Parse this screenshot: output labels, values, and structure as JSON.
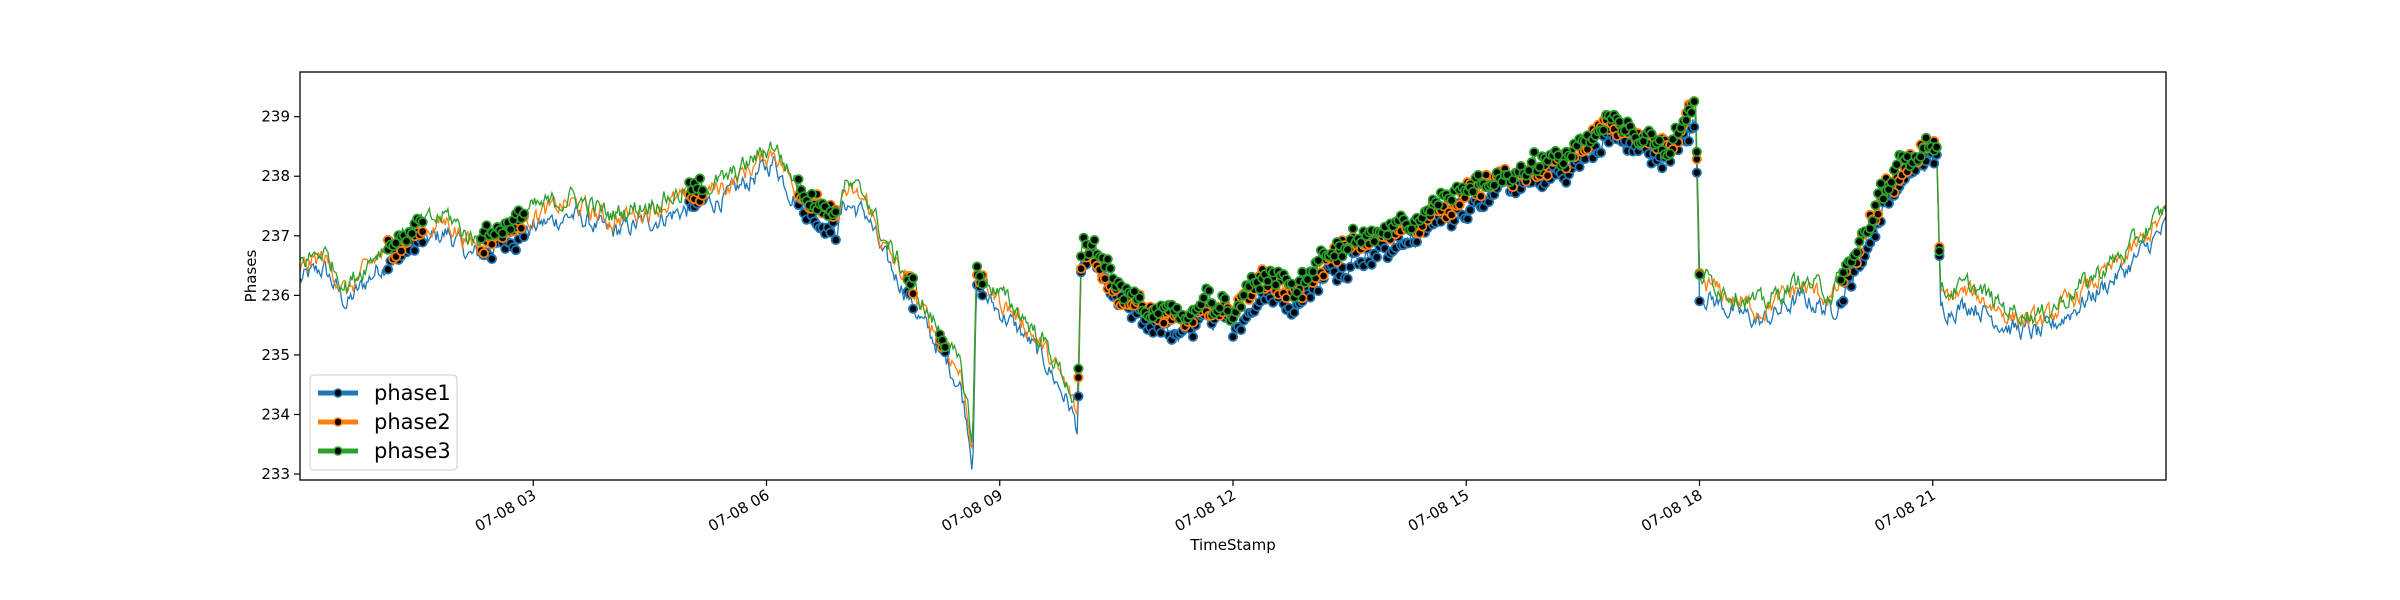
{
  "chart_data": {
    "type": "line",
    "xlabel": "TimeStamp",
    "ylabel": "Phases",
    "xlim_hours": [
      0,
      24
    ],
    "ylim": [
      232.9,
      239.75
    ],
    "grid": false,
    "legend_position": "lower-left",
    "x_ticks": [
      {
        "hour": 3,
        "label": "07-08 03"
      },
      {
        "hour": 6,
        "label": "07-08 06"
      },
      {
        "hour": 9,
        "label": "07-08 09"
      },
      {
        "hour": 12,
        "label": "07-08 12"
      },
      {
        "hour": 15,
        "label": "07-08 15"
      },
      {
        "hour": 18,
        "label": "07-08 18"
      },
      {
        "hour": 21,
        "label": "07-08 21"
      }
    ],
    "y_ticks": [
      233,
      234,
      235,
      236,
      237,
      238,
      239
    ],
    "series": [
      {
        "name": "phase1",
        "color": "#1f77b4",
        "offset": -0.25
      },
      {
        "name": "phase2",
        "color": "#ff7f0e",
        "offset": -0.05
      },
      {
        "name": "phase3",
        "color": "#2ca02c",
        "offset": 0.05
      }
    ],
    "base_profile": [
      [
        0.0,
        236.5
      ],
      [
        0.3,
        236.7
      ],
      [
        0.6,
        236.1
      ],
      [
        1.0,
        236.7
      ],
      [
        1.5,
        237.1
      ],
      [
        1.9,
        237.3
      ],
      [
        2.2,
        236.9
      ],
      [
        2.6,
        237.1
      ],
      [
        3.0,
        237.4
      ],
      [
        3.5,
        237.6
      ],
      [
        4.0,
        237.3
      ],
      [
        4.5,
        237.5
      ],
      [
        5.0,
        237.7
      ],
      [
        5.5,
        237.9
      ],
      [
        5.9,
        238.3
      ],
      [
        6.1,
        238.5
      ],
      [
        6.3,
        238.0
      ],
      [
        6.6,
        237.6
      ],
      [
        6.9,
        237.3
      ],
      [
        7.0,
        237.8
      ],
      [
        7.3,
        237.6
      ],
      [
        7.5,
        236.9
      ],
      [
        7.8,
        236.3
      ],
      [
        8.0,
        235.8
      ],
      [
        8.3,
        235.2
      ],
      [
        8.5,
        234.7
      ],
      [
        8.6,
        234.0
      ],
      [
        8.65,
        233.4
      ],
      [
        8.7,
        236.4
      ],
      [
        8.9,
        236.1
      ],
      [
        9.3,
        235.6
      ],
      [
        9.6,
        235.1
      ],
      [
        9.9,
        234.4
      ],
      [
        10.0,
        234.0
      ],
      [
        10.05,
        236.7
      ],
      [
        10.2,
        236.8
      ],
      [
        10.5,
        236.1
      ],
      [
        10.9,
        235.8
      ],
      [
        11.3,
        235.5
      ],
      [
        11.6,
        235.9
      ],
      [
        12.0,
        235.7
      ],
      [
        12.4,
        236.3
      ],
      [
        12.8,
        236.1
      ],
      [
        13.2,
        236.6
      ],
      [
        13.6,
        236.9
      ],
      [
        14.0,
        237.0
      ],
      [
        14.4,
        237.3
      ],
      [
        14.8,
        237.6
      ],
      [
        15.2,
        237.9
      ],
      [
        15.6,
        238.0
      ],
      [
        16.0,
        238.2
      ],
      [
        16.4,
        238.4
      ],
      [
        16.8,
        238.9
      ],
      [
        17.2,
        238.7
      ],
      [
        17.6,
        238.5
      ],
      [
        17.95,
        239.2
      ],
      [
        18.0,
        236.3
      ],
      [
        18.4,
        236.0
      ],
      [
        18.8,
        235.8
      ],
      [
        19.3,
        236.2
      ],
      [
        19.7,
        236.0
      ],
      [
        20.0,
        236.6
      ],
      [
        20.4,
        237.8
      ],
      [
        20.8,
        238.4
      ],
      [
        21.05,
        238.6
      ],
      [
        21.1,
        236.0
      ],
      [
        21.5,
        236.1
      ],
      [
        22.0,
        235.7
      ],
      [
        22.4,
        235.6
      ],
      [
        22.9,
        236.1
      ],
      [
        23.5,
        236.7
      ],
      [
        24.0,
        237.4
      ]
    ],
    "marker_hour_ranges": [
      [
        1.1,
        1.6
      ],
      [
        2.3,
        2.4
      ],
      [
        2.4,
        2.9
      ],
      [
        5.0,
        5.2
      ],
      [
        6.4,
        6.9
      ],
      [
        7.8,
        7.9
      ],
      [
        8.2,
        8.3
      ],
      [
        8.7,
        8.8
      ],
      [
        10.0,
        18.0
      ],
      [
        19.8,
        21.1
      ]
    ]
  }
}
